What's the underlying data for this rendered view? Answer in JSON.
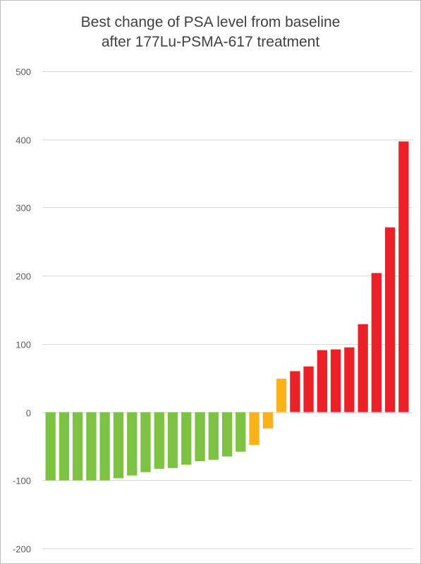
{
  "chart_data": {
    "type": "bar",
    "title_lines": [
      "Best change of PSA level from baseline",
      "after 177Lu-PSMA-617 treatment"
    ],
    "xlabel": "",
    "ylabel": "",
    "ylim": [
      -200,
      500
    ],
    "yticks": [
      500,
      400,
      300,
      200,
      100,
      0,
      -100,
      -200
    ],
    "grid": true,
    "legend": "none",
    "values": [
      -100,
      -100,
      -100,
      -100,
      -100,
      -97,
      -93,
      -88,
      -83,
      -82,
      -77,
      -72,
      -70,
      -65,
      -58,
      -48,
      -24,
      49,
      60,
      67,
      91,
      92,
      95,
      129,
      204,
      271,
      397
    ],
    "colors": {
      "green": "#7DC242",
      "orange": "#FBB11A",
      "red": "#EC2027"
    },
    "bar_colors": [
      "green",
      "green",
      "green",
      "green",
      "green",
      "green",
      "green",
      "green",
      "green",
      "green",
      "green",
      "green",
      "green",
      "green",
      "green",
      "orange",
      "orange",
      "orange",
      "red",
      "red",
      "red",
      "red",
      "red",
      "red",
      "red",
      "red",
      "red"
    ]
  }
}
